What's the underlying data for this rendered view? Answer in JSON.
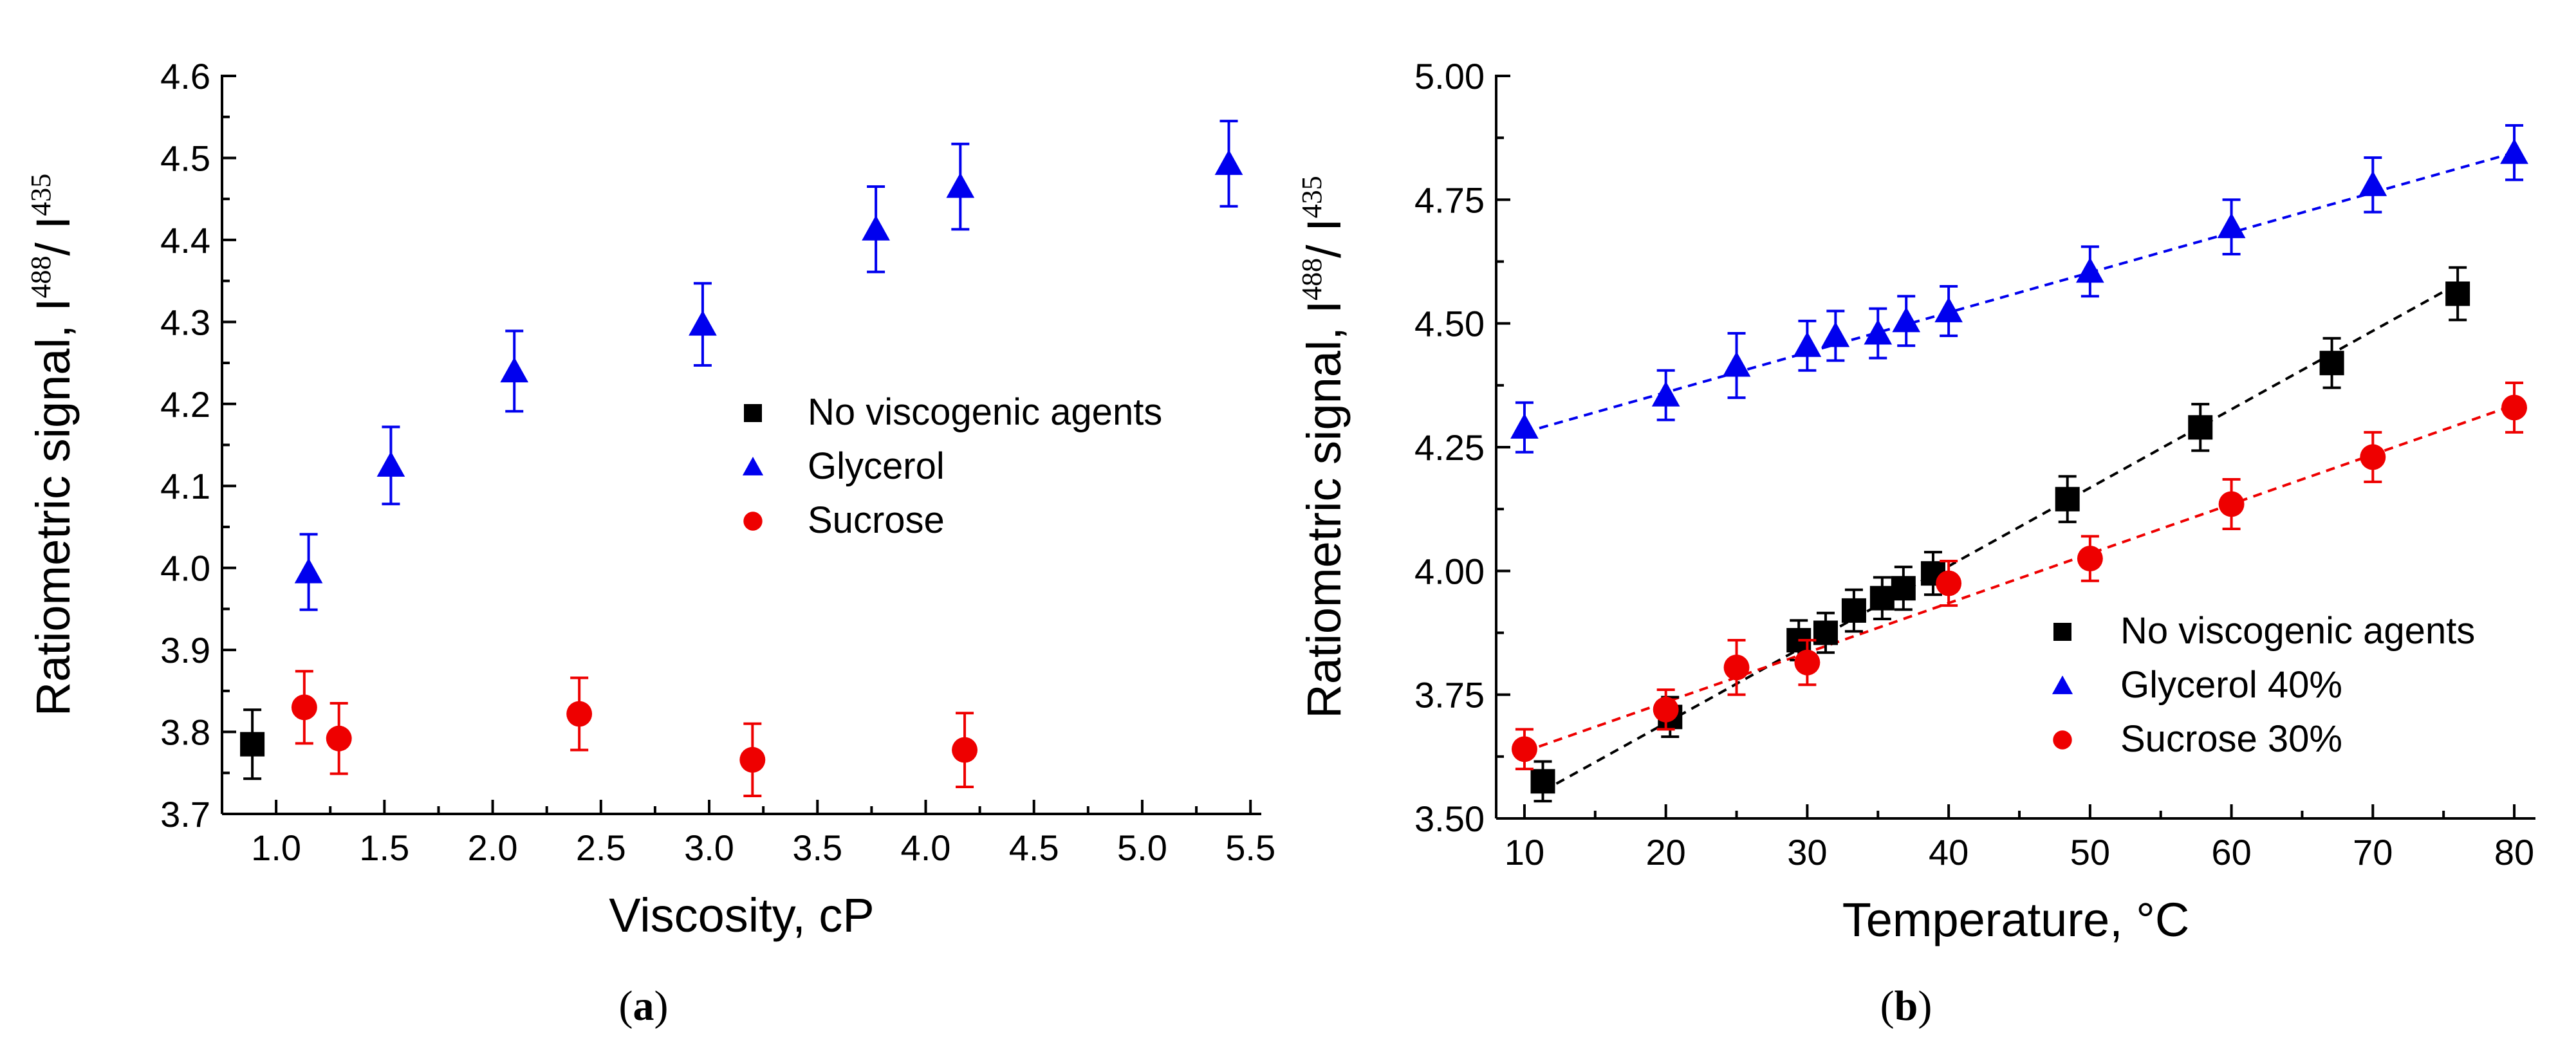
{
  "figure": {
    "panel_a_label": "a",
    "panel_b_label": "b"
  },
  "colors": {
    "none": "#000000",
    "glycerol": "#0000ee",
    "sucrose": "#ee0000"
  },
  "chart_data": [
    {
      "id": "a",
      "type": "scatter",
      "title": "",
      "xlabel": "Viscosity, cP",
      "ylabel": "Ratiometric signal, I",
      "ylabel_sup1": "488",
      "ylabel_mid": "/ I",
      "ylabel_sup2": "435",
      "xlim": [
        0.75,
        5.55
      ],
      "ylim": [
        3.7,
        4.6
      ],
      "xticks": [
        "1.0",
        "1.5",
        "2.0",
        "2.5",
        "3.0",
        "3.5",
        "4.0",
        "4.5",
        "5.0",
        "5.5"
      ],
      "yticks": [
        "3.7",
        "3.8",
        "3.9",
        "4.0",
        "4.1",
        "4.2",
        "4.3",
        "4.4",
        "4.5",
        "4.6"
      ],
      "grid": false,
      "legend_position": "right-middle",
      "series": [
        {
          "name": "No viscogenic agents",
          "marker": "square",
          "color": "#000000",
          "x": [
            0.89
          ],
          "y": [
            3.785
          ],
          "err": [
            0.042
          ]
        },
        {
          "name": "Glycerol",
          "marker": "triangle",
          "color": "#0000ee",
          "x": [
            1.15,
            1.53,
            2.1,
            2.97,
            3.77,
            4.16,
            5.4
          ],
          "y": [
            3.995,
            4.125,
            4.24,
            4.297,
            4.413,
            4.465,
            4.493
          ],
          "err": [
            0.046,
            0.047,
            0.049,
            0.05,
            0.052,
            0.052,
            0.052
          ]
        },
        {
          "name": "Sucrose",
          "marker": "circle",
          "color": "#ee0000",
          "x": [
            1.13,
            1.29,
            2.4,
            3.2,
            4.18
          ],
          "y": [
            3.83,
            3.792,
            3.822,
            3.766,
            3.778
          ],
          "err": [
            0.044,
            0.043,
            0.044,
            0.044,
            0.045
          ]
        }
      ]
    },
    {
      "id": "b",
      "type": "scatter",
      "title": "",
      "xlabel": "Temperature, °C",
      "ylabel": "Ratiometric signal, I",
      "ylabel_sup1": "488",
      "ylabel_mid": "/ I",
      "ylabel_sup2": "435",
      "xlim": [
        8,
        81.5
      ],
      "ylim": [
        3.5,
        5.0
      ],
      "xticks": [
        "10",
        "20",
        "30",
        "40",
        "50",
        "60",
        "70",
        "80"
      ],
      "yticks": [
        "3.50",
        "3.75",
        "4.00",
        "4.25",
        "4.50",
        "4.75",
        "5.00"
      ],
      "grid": false,
      "legend_position": "bottom-right",
      "series": [
        {
          "name": "No viscogenic agents",
          "marker": "square",
          "color": "#000000",
          "x": [
            11.3,
            20.3,
            29.4,
            31.3,
            33.3,
            35.3,
            36.8,
            38.9,
            48.4,
            57.8,
            67.1,
            76.0
          ],
          "y": [
            3.575,
            3.705,
            3.86,
            3.875,
            3.92,
            3.945,
            3.965,
            3.995,
            4.145,
            4.29,
            4.42,
            4.56
          ],
          "err": [
            0.04,
            0.04,
            0.04,
            0.04,
            0.042,
            0.042,
            0.043,
            0.043,
            0.046,
            0.047,
            0.05,
            0.053
          ],
          "fit": {
            "x": [
              11.3,
              76.0
            ],
            "y": [
              3.555,
              4.58
            ]
          }
        },
        {
          "name": "Glycerol 40%",
          "marker": "triangle",
          "color": "#0000ee",
          "x": [
            10,
            20,
            25,
            30,
            32,
            35,
            37,
            40,
            50,
            60,
            70,
            80
          ],
          "y": [
            4.29,
            4.355,
            4.415,
            4.455,
            4.475,
            4.48,
            4.505,
            4.525,
            4.605,
            4.695,
            4.78,
            4.845
          ],
          "err": [
            0.05,
            0.05,
            0.065,
            0.05,
            0.05,
            0.05,
            0.05,
            0.05,
            0.05,
            0.055,
            0.055,
            0.055
          ],
          "fit": {
            "x": [
              10,
              80
            ],
            "y": [
              4.28,
              4.845
            ]
          }
        },
        {
          "name": "Sucrose 30%",
          "marker": "circle",
          "color": "#ee0000",
          "x": [
            10,
            20,
            25,
            30,
            40,
            50,
            60,
            70,
            80
          ],
          "y": [
            3.64,
            3.72,
            3.805,
            3.815,
            3.975,
            4.025,
            4.135,
            4.23,
            4.33
          ],
          "err": [
            0.04,
            0.04,
            0.055,
            0.045,
            0.045,
            0.045,
            0.05,
            0.05,
            0.05
          ],
          "fit": {
            "x": [
              10,
              80
            ],
            "y": [
              3.635,
              4.335
            ]
          }
        }
      ]
    }
  ]
}
